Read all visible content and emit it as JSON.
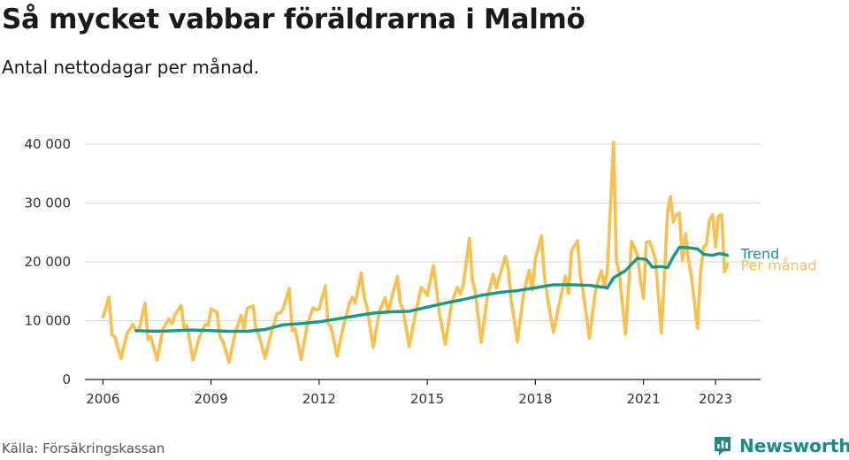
{
  "title": "Så mycket vabbar föräldrarna i Malmö",
  "subtitle": "Antal nettodagar per månad.",
  "source": "Källa: Försäkringskassan",
  "brand": "Newsworthy",
  "colors": {
    "monthly": "#f9c04c",
    "trend": "#16998a",
    "grid": "#d9d9d9",
    "brand": "#1a8a84"
  },
  "chart_data": {
    "type": "line",
    "title": "Så mycket vabbar föräldrarna i Malmö",
    "subtitle": "Antal nettodagar per månad.",
    "ylim": [
      0,
      40000
    ],
    "xlim": [
      2005.5,
      2024.25
    ],
    "y_ticks": [
      0,
      10000,
      20000,
      30000,
      40000
    ],
    "y_tick_labels": [
      "0",
      "10 000",
      "20 000",
      "30 000",
      "40 000"
    ],
    "x_ticks": [
      2006,
      2009,
      2012,
      2015,
      2018,
      2021,
      2023
    ],
    "x_tick_labels": [
      "2006",
      "2009",
      "2012",
      "2015",
      "2018",
      "2021",
      "2023"
    ],
    "grid": true,
    "series": [
      {
        "name": "Per månad",
        "points": [
          [
            2006.0,
            10600
          ],
          [
            2006.17,
            14000
          ],
          [
            2006.25,
            7600
          ],
          [
            2006.33,
            7300
          ],
          [
            2006.5,
            3600
          ],
          [
            2006.67,
            7800
          ],
          [
            2006.83,
            9400
          ],
          [
            2006.92,
            8200
          ],
          [
            2007.0,
            8400
          ],
          [
            2007.17,
            13000
          ],
          [
            2007.25,
            6800
          ],
          [
            2007.33,
            7300
          ],
          [
            2007.5,
            3300
          ],
          [
            2007.67,
            8600
          ],
          [
            2007.83,
            10300
          ],
          [
            2007.92,
            9500
          ],
          [
            2008.0,
            11000
          ],
          [
            2008.17,
            12600
          ],
          [
            2008.25,
            8600
          ],
          [
            2008.33,
            9200
          ],
          [
            2008.5,
            3300
          ],
          [
            2008.67,
            7100
          ],
          [
            2008.83,
            9300
          ],
          [
            2008.92,
            9200
          ],
          [
            2009.0,
            12000
          ],
          [
            2009.17,
            11400
          ],
          [
            2009.25,
            7200
          ],
          [
            2009.33,
            6500
          ],
          [
            2009.5,
            2900
          ],
          [
            2009.67,
            7900
          ],
          [
            2009.83,
            10900
          ],
          [
            2009.92,
            8600
          ],
          [
            2010.0,
            12100
          ],
          [
            2010.17,
            12500
          ],
          [
            2010.25,
            8300
          ],
          [
            2010.33,
            7500
          ],
          [
            2010.5,
            3600
          ],
          [
            2010.67,
            7900
          ],
          [
            2010.83,
            11200
          ],
          [
            2010.92,
            11300
          ],
          [
            2011.0,
            12000
          ],
          [
            2011.17,
            15500
          ],
          [
            2011.25,
            8300
          ],
          [
            2011.33,
            8700
          ],
          [
            2011.5,
            3400
          ],
          [
            2011.67,
            9300
          ],
          [
            2011.83,
            12200
          ],
          [
            2011.92,
            11800
          ],
          [
            2012.0,
            12000
          ],
          [
            2012.17,
            15900
          ],
          [
            2012.25,
            9400
          ],
          [
            2012.33,
            9000
          ],
          [
            2012.5,
            4000
          ],
          [
            2012.67,
            9000
          ],
          [
            2012.83,
            12800
          ],
          [
            2012.92,
            14000
          ],
          [
            2013.0,
            13000
          ],
          [
            2013.17,
            18100
          ],
          [
            2013.25,
            14000
          ],
          [
            2013.33,
            12300
          ],
          [
            2013.5,
            5500
          ],
          [
            2013.67,
            11500
          ],
          [
            2013.83,
            13900
          ],
          [
            2013.92,
            11400
          ],
          [
            2014.0,
            13500
          ],
          [
            2014.17,
            17500
          ],
          [
            2014.25,
            13000
          ],
          [
            2014.33,
            11900
          ],
          [
            2014.5,
            5600
          ],
          [
            2014.67,
            11000
          ],
          [
            2014.83,
            15700
          ],
          [
            2014.92,
            15100
          ],
          [
            2015.0,
            14300
          ],
          [
            2015.17,
            19400
          ],
          [
            2015.25,
            15800
          ],
          [
            2015.33,
            11600
          ],
          [
            2015.5,
            6000
          ],
          [
            2015.67,
            12800
          ],
          [
            2015.83,
            15700
          ],
          [
            2015.92,
            14500
          ],
          [
            2016.0,
            16000
          ],
          [
            2016.17,
            24000
          ],
          [
            2016.25,
            17100
          ],
          [
            2016.33,
            14900
          ],
          [
            2016.5,
            6300
          ],
          [
            2016.67,
            14100
          ],
          [
            2016.83,
            17900
          ],
          [
            2016.92,
            15500
          ],
          [
            2017.0,
            17400
          ],
          [
            2017.17,
            20900
          ],
          [
            2017.25,
            18700
          ],
          [
            2017.33,
            13600
          ],
          [
            2017.5,
            6400
          ],
          [
            2017.67,
            14400
          ],
          [
            2017.83,
            18600
          ],
          [
            2017.92,
            15200
          ],
          [
            2018.0,
            20500
          ],
          [
            2018.17,
            24400
          ],
          [
            2018.25,
            17600
          ],
          [
            2018.33,
            14300
          ],
          [
            2018.5,
            8000
          ],
          [
            2018.67,
            13000
          ],
          [
            2018.83,
            17600
          ],
          [
            2018.92,
            14600
          ],
          [
            2019.0,
            21800
          ],
          [
            2019.17,
            23600
          ],
          [
            2019.25,
            17400
          ],
          [
            2019.33,
            14800
          ],
          [
            2019.5,
            7000
          ],
          [
            2019.67,
            15200
          ],
          [
            2019.83,
            18500
          ],
          [
            2019.92,
            15700
          ],
          [
            2020.0,
            18700
          ],
          [
            2020.17,
            40300
          ],
          [
            2020.25,
            20000
          ],
          [
            2020.33,
            18200
          ],
          [
            2020.5,
            7700
          ],
          [
            2020.67,
            23500
          ],
          [
            2020.83,
            21300
          ],
          [
            2020.92,
            16700
          ],
          [
            2021.0,
            13800
          ],
          [
            2021.08,
            23300
          ],
          [
            2021.17,
            23500
          ],
          [
            2021.33,
            20600
          ],
          [
            2021.5,
            7900
          ],
          [
            2021.67,
            28700
          ],
          [
            2021.75,
            31100
          ],
          [
            2021.83,
            26800
          ],
          [
            2021.92,
            28000
          ],
          [
            2022.0,
            28300
          ],
          [
            2022.08,
            20200
          ],
          [
            2022.17,
            24800
          ],
          [
            2022.25,
            20200
          ],
          [
            2022.33,
            17500
          ],
          [
            2022.5,
            8700
          ],
          [
            2022.58,
            18000
          ],
          [
            2022.67,
            22500
          ],
          [
            2022.75,
            23000
          ],
          [
            2022.83,
            27000
          ],
          [
            2022.92,
            28000
          ],
          [
            2023.0,
            22500
          ],
          [
            2023.08,
            27800
          ],
          [
            2023.17,
            28000
          ],
          [
            2023.25,
            18300
          ],
          [
            2023.33,
            19600
          ]
        ]
      },
      {
        "name": "Trend",
        "points": [
          [
            2006.92,
            8300
          ],
          [
            2007.5,
            8200
          ],
          [
            2008.0,
            8300
          ],
          [
            2008.5,
            8400
          ],
          [
            2009.0,
            8300
          ],
          [
            2009.5,
            8200
          ],
          [
            2010.0,
            8200
          ],
          [
            2010.5,
            8500
          ],
          [
            2011.0,
            9300
          ],
          [
            2011.5,
            9500
          ],
          [
            2012.0,
            9800
          ],
          [
            2012.5,
            10300
          ],
          [
            2013.0,
            10800
          ],
          [
            2013.5,
            11300
          ],
          [
            2014.0,
            11500
          ],
          [
            2014.5,
            11600
          ],
          [
            2015.0,
            12300
          ],
          [
            2015.5,
            13000
          ],
          [
            2016.0,
            13600
          ],
          [
            2016.5,
            14300
          ],
          [
            2017.0,
            14800
          ],
          [
            2017.5,
            15100
          ],
          [
            2018.0,
            15600
          ],
          [
            2018.5,
            16100
          ],
          [
            2019.0,
            16100
          ],
          [
            2019.5,
            16000
          ],
          [
            2020.0,
            15600
          ],
          [
            2020.17,
            17300
          ],
          [
            2020.5,
            18500
          ],
          [
            2020.83,
            20600
          ],
          [
            2021.08,
            20400
          ],
          [
            2021.25,
            19100
          ],
          [
            2021.5,
            19200
          ],
          [
            2021.67,
            19000
          ],
          [
            2021.83,
            20900
          ],
          [
            2022.0,
            22500
          ],
          [
            2022.25,
            22400
          ],
          [
            2022.5,
            22200
          ],
          [
            2022.67,
            21300
          ],
          [
            2022.92,
            21100
          ],
          [
            2023.08,
            21400
          ],
          [
            2023.25,
            21300
          ],
          [
            2023.33,
            21100
          ]
        ]
      }
    ]
  }
}
